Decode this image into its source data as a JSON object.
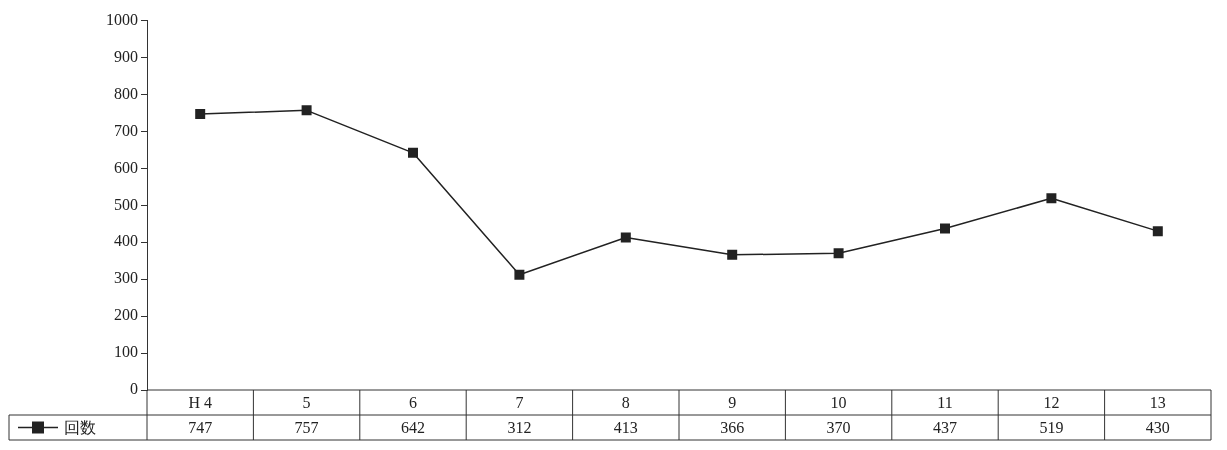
{
  "chart_data": {
    "type": "line",
    "categories": [
      "H 4",
      "5",
      "6",
      "7",
      "8",
      "9",
      "10",
      "11",
      "12",
      "13"
    ],
    "series": [
      {
        "name": "回数",
        "color": "#222222",
        "values": [
          747,
          757,
          642,
          312,
          413,
          366,
          370,
          437,
          519,
          430
        ]
      }
    ],
    "ylim": [
      0,
      1000
    ],
    "yticks": [
      0,
      100,
      200,
      300,
      400,
      500,
      600,
      700,
      800,
      900,
      1000
    ],
    "grid": false,
    "legend": "bottom",
    "marker": "square",
    "line_style": "solid",
    "data_labels": true
  }
}
